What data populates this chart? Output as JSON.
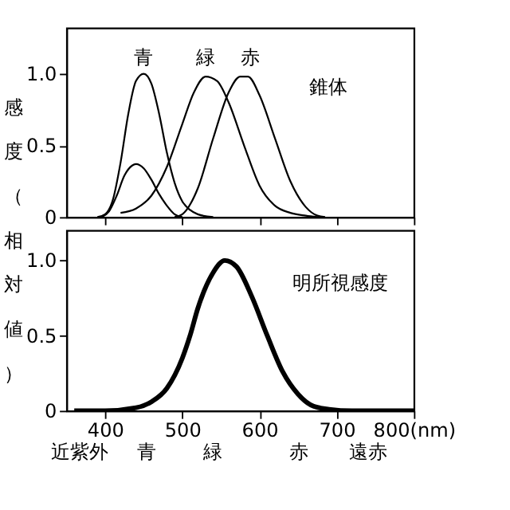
{
  "chart_data": [
    {
      "type": "line",
      "ylabel": "感度（相対値）",
      "xlim": [
        350,
        800
      ],
      "ylim": [
        0,
        1.32
      ],
      "xticks": [
        400,
        500,
        600,
        700,
        800
      ],
      "yticks": [
        0,
        0.5,
        {
          "value": 1,
          "label": "1.0"
        }
      ],
      "tick_labels": "y",
      "grid": false,
      "series": [
        {
          "color": "#000000",
          "x": [
            390,
            400,
            410,
            420,
            430,
            440,
            450,
            460,
            470,
            480,
            490,
            500,
            510,
            520,
            540
          ],
          "values": [
            0,
            0.02,
            0.12,
            0.38,
            0.72,
            0.95,
            1.0,
            0.93,
            0.72,
            0.45,
            0.24,
            0.11,
            0.05,
            0.02,
            0
          ]
        },
        {
          "color": "#000000",
          "x": [
            395,
            405,
            415,
            425,
            435,
            440,
            450,
            460,
            470,
            480,
            490,
            500
          ],
          "values": [
            0,
            0.04,
            0.15,
            0.29,
            0.36,
            0.37,
            0.34,
            0.26,
            0.16,
            0.08,
            0.02,
            0
          ]
        },
        {
          "color": "#000000",
          "x": [
            420,
            440,
            460,
            480,
            500,
            515,
            530,
            545,
            560,
            580,
            600,
            620,
            640,
            660,
            675
          ],
          "values": [
            0.03,
            0.06,
            0.15,
            0.35,
            0.65,
            0.87,
            0.98,
            0.95,
            0.8,
            0.5,
            0.22,
            0.08,
            0.03,
            0.01,
            0
          ]
        },
        {
          "color": "#000000",
          "x": [
            490,
            500,
            520,
            540,
            560,
            575,
            585,
            600,
            620,
            640,
            660,
            675,
            685
          ],
          "values": [
            0,
            0.02,
            0.2,
            0.55,
            0.87,
            0.98,
            0.98,
            0.85,
            0.55,
            0.25,
            0.07,
            0.01,
            0
          ]
        }
      ],
      "annotations": [
        "青",
        "緑",
        "赤",
        "錐体"
      ]
    },
    {
      "type": "line",
      "xlim": [
        350,
        800
      ],
      "ylim": [
        0,
        1.2
      ],
      "xticks": [
        400,
        500,
        600,
        700,
        {
          "value": 800,
          "label": "800(nm)"
        }
      ],
      "yticks": [
        0,
        0.5,
        {
          "value": 1,
          "label": "1.0"
        }
      ],
      "grid": false,
      "series": [
        {
          "color": "#000000",
          "x": [
            360,
            400,
            440,
            460,
            480,
            500,
            510,
            520,
            540,
            555,
            570,
            590,
            610,
            630,
            650,
            670,
            690,
            720,
            800
          ],
          "values": [
            0,
            0,
            0.02,
            0.06,
            0.15,
            0.35,
            0.5,
            0.68,
            0.92,
            1.0,
            0.96,
            0.76,
            0.5,
            0.26,
            0.11,
            0.03,
            0.01,
            0,
            0
          ]
        }
      ],
      "annotations": [
        "明所視感度",
        "近紫外",
        "青",
        "緑",
        "赤",
        "遠赤"
      ]
    }
  ]
}
